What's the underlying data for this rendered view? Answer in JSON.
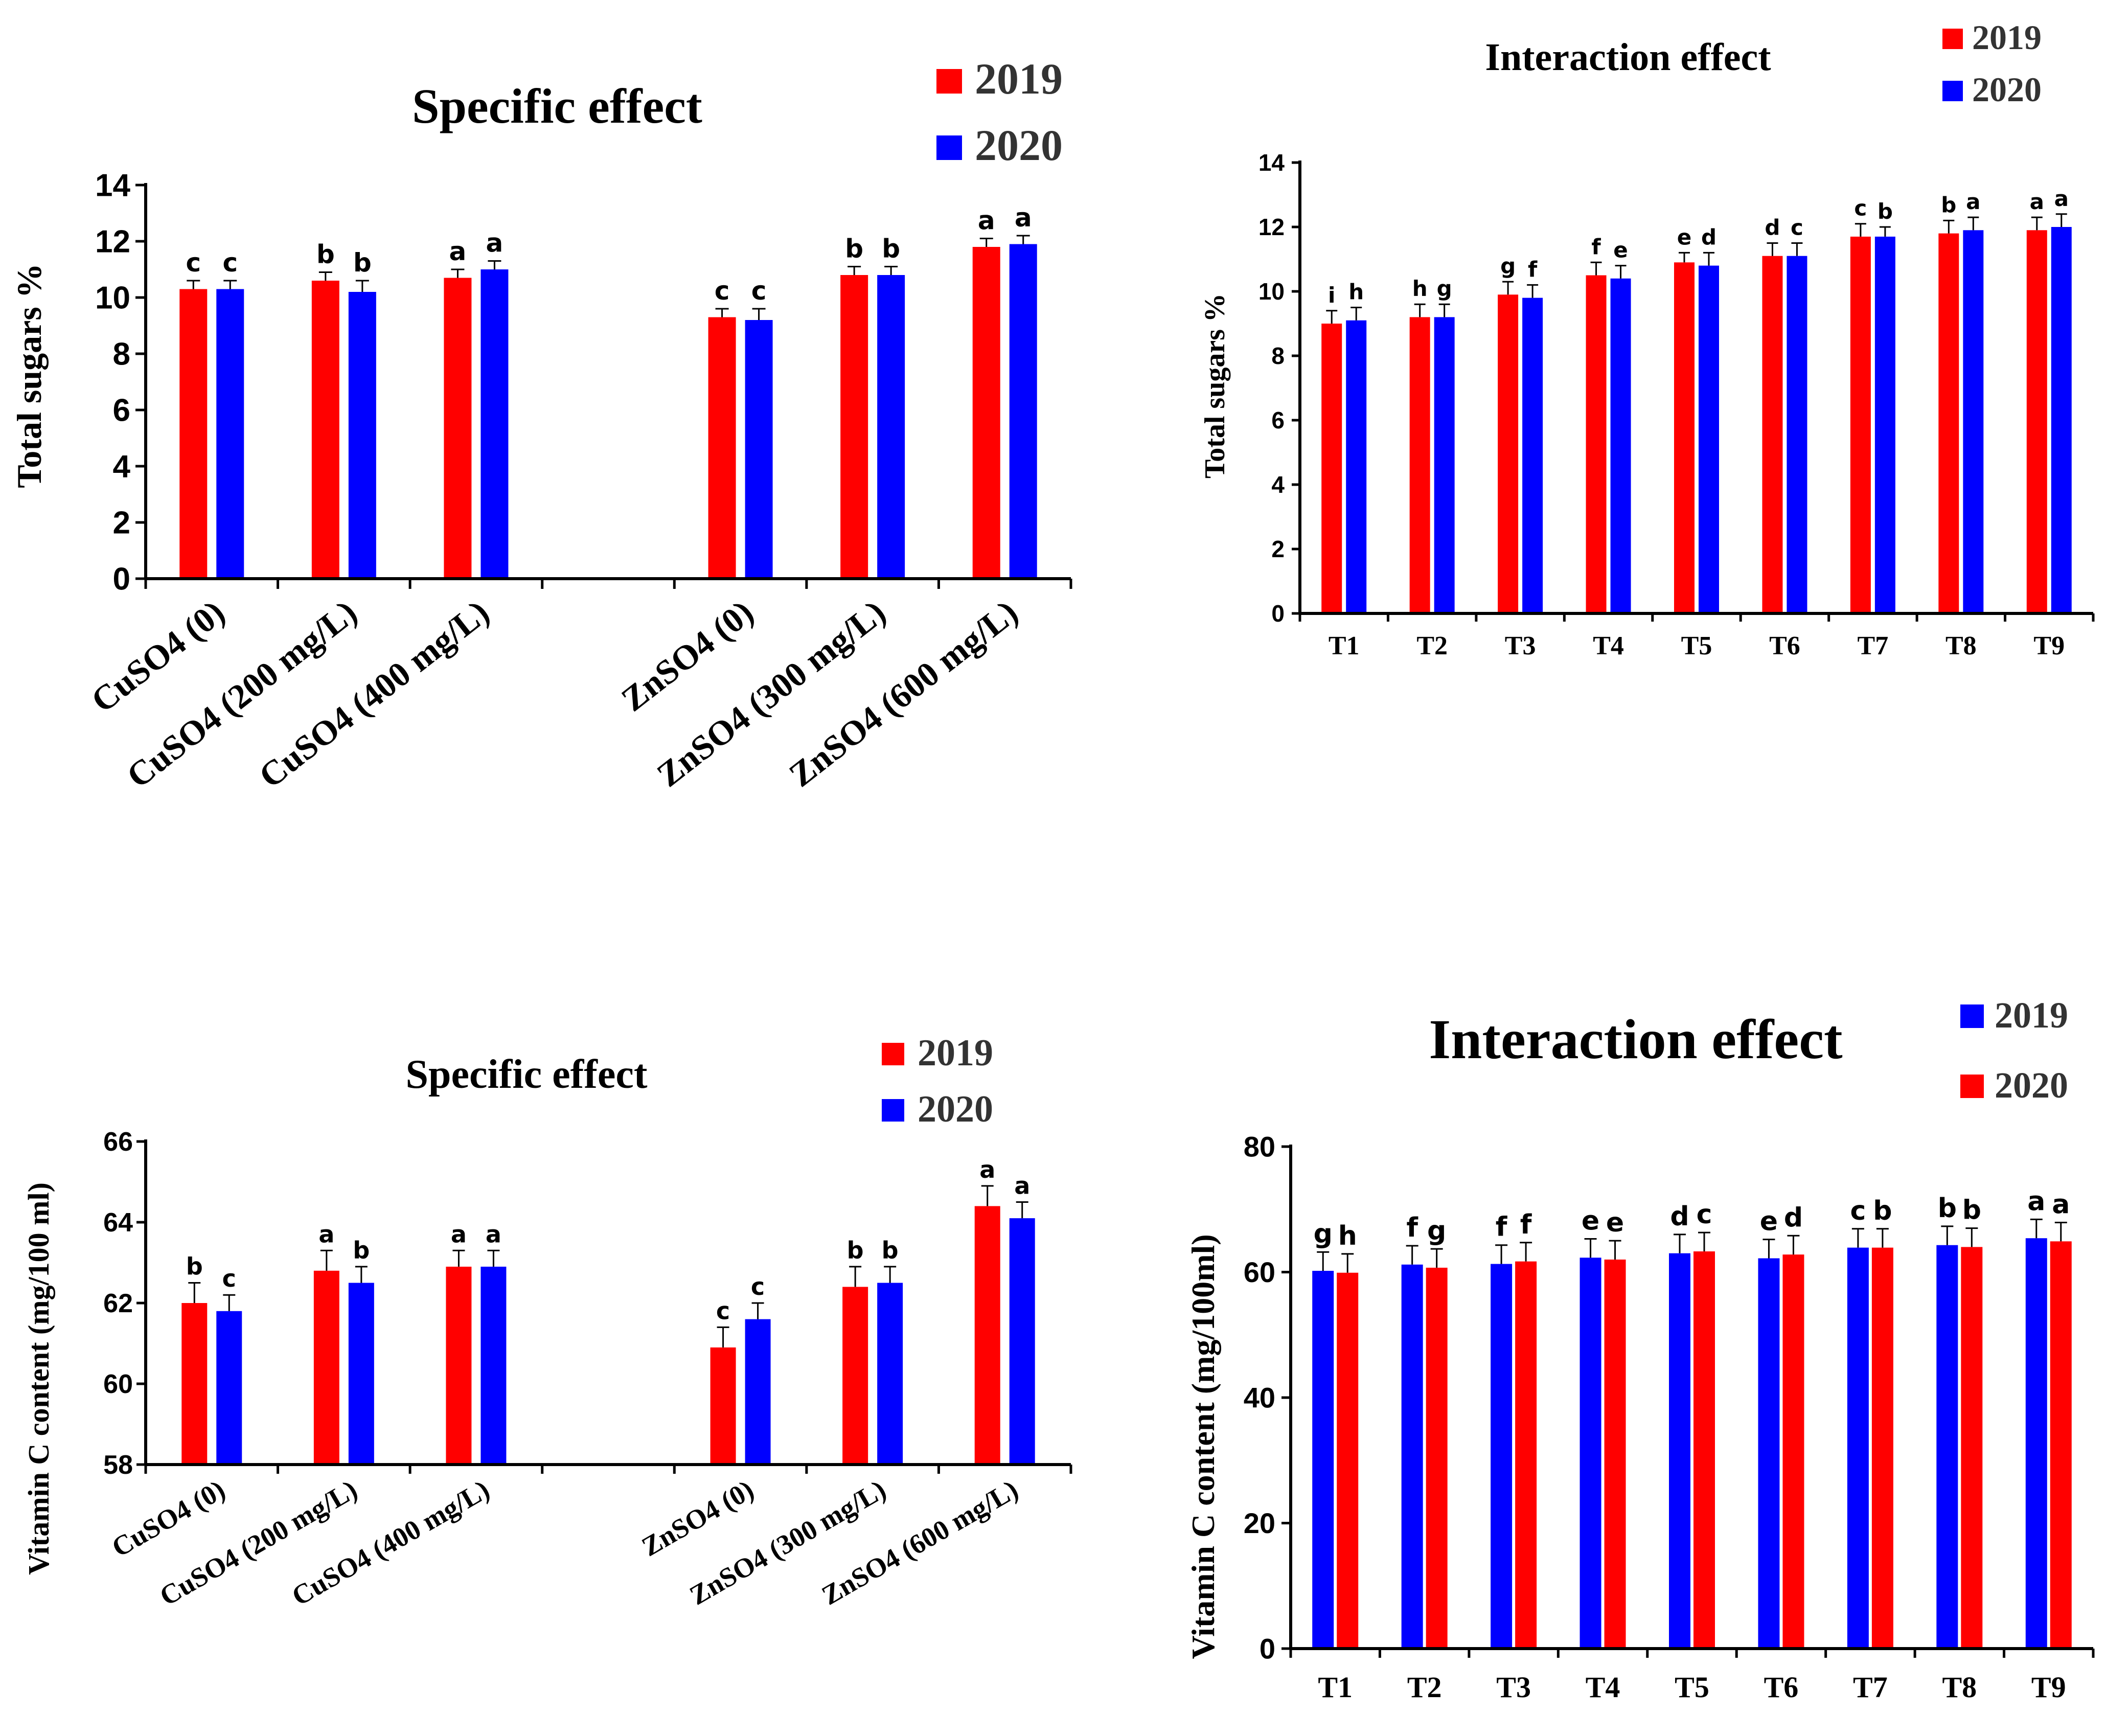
{
  "chart_data": [
    {
      "type": "bar",
      "title": "Specific effect",
      "xlabel": "",
      "ylabel": "Total sugars %",
      "ylim": [
        0,
        14
      ],
      "yticks": [
        0,
        2,
        4,
        6,
        8,
        10,
        12,
        14
      ],
      "categories": [
        "CuSO4 (0)",
        "CuSO4 (200 mg/L)",
        "CuSO4 (400 mg/L)",
        "ZnSO4 (0)",
        "ZnSO4 (300 mg/L)",
        "ZnSO4 (600 mg/L)"
      ],
      "series": [
        {
          "name": "2019",
          "color": "#ff0000",
          "values": [
            10.3,
            10.6,
            10.7,
            9.3,
            10.8,
            11.8
          ],
          "errors": [
            0.3,
            0.3,
            0.3,
            0.3,
            0.3,
            0.3
          ],
          "letters": [
            "c",
            "b",
            "a",
            "c",
            "b",
            "a"
          ]
        },
        {
          "name": "2020",
          "color": "#0000ff",
          "values": [
            10.3,
            10.2,
            11.0,
            9.2,
            10.8,
            11.9
          ],
          "errors": [
            0.3,
            0.4,
            0.3,
            0.4,
            0.3,
            0.3
          ],
          "letters": [
            "c",
            "b",
            "a",
            "c",
            "b",
            "a"
          ]
        }
      ],
      "legend_position": "top-right"
    },
    {
      "type": "bar",
      "title": "Interaction effect",
      "xlabel": "",
      "ylabel": "Total sugars %",
      "ylim": [
        0,
        14
      ],
      "yticks": [
        0,
        2,
        4,
        6,
        8,
        10,
        12,
        14
      ],
      "categories": [
        "T1",
        "T2",
        "T3",
        "T4",
        "T5",
        "T6",
        "T7",
        "T8",
        "T9"
      ],
      "series": [
        {
          "name": "2019",
          "color": "#ff0000",
          "values": [
            9.0,
            9.2,
            9.9,
            10.5,
            10.9,
            11.1,
            11.7,
            11.8,
            11.9
          ],
          "errors": [
            0.4,
            0.4,
            0.4,
            0.4,
            0.3,
            0.4,
            0.4,
            0.4,
            0.4
          ],
          "letters": [
            "i",
            "h",
            "g",
            "f",
            "e",
            "d",
            "c",
            "b",
            "a"
          ]
        },
        {
          "name": "2020",
          "color": "#0000ff",
          "values": [
            9.1,
            9.2,
            9.8,
            10.4,
            10.8,
            11.1,
            11.7,
            11.9,
            12.0
          ],
          "errors": [
            0.4,
            0.4,
            0.4,
            0.4,
            0.4,
            0.4,
            0.3,
            0.4,
            0.4
          ],
          "letters": [
            "h",
            "g",
            "f",
            "e",
            "d",
            "c",
            "b",
            "a",
            "a"
          ]
        }
      ],
      "legend_position": "top-right"
    },
    {
      "type": "bar",
      "title": "Specific effect",
      "xlabel": "",
      "ylabel": "Vitamin C content (mg/100 ml)",
      "ylim": [
        58,
        66
      ],
      "yticks": [
        58,
        60,
        62,
        64,
        66
      ],
      "categories": [
        "CuSO4 (0)",
        "CuSO4 (200 mg/L)",
        "CuSO4 (400 mg/L)",
        "ZnSO4 (0)",
        "ZnSO4 (300 mg/L)",
        "ZnSO4 (600 mg/L)"
      ],
      "series": [
        {
          "name": "2019",
          "color": "#ff0000",
          "values": [
            62.0,
            62.8,
            62.9,
            60.9,
            62.4,
            64.4
          ],
          "errors": [
            0.5,
            0.5,
            0.4,
            0.5,
            0.5,
            0.5
          ],
          "letters": [
            "b",
            "a",
            "a",
            "c",
            "b",
            "a"
          ]
        },
        {
          "name": "2020",
          "color": "#0000ff",
          "values": [
            61.8,
            62.5,
            62.9,
            61.6,
            62.5,
            64.1
          ],
          "errors": [
            0.4,
            0.4,
            0.4,
            0.4,
            0.4,
            0.4
          ],
          "letters": [
            "c",
            "b",
            "a",
            "c",
            "b",
            "a"
          ]
        }
      ],
      "legend_position": "top-right"
    },
    {
      "type": "bar",
      "title": "Interaction effect",
      "xlabel": "",
      "ylabel": "Vitamin C content (mg/100ml)",
      "ylim": [
        0,
        80
      ],
      "yticks": [
        0,
        20,
        40,
        60,
        80
      ],
      "categories": [
        "T1",
        "T2",
        "T3",
        "T4",
        "T5",
        "T6",
        "T7",
        "T8",
        "T9"
      ],
      "series": [
        {
          "name": "2019",
          "color": "#0000ff",
          "values": [
            60.2,
            61.2,
            61.3,
            62.3,
            63.0,
            62.2,
            63.9,
            64.3,
            65.4
          ],
          "errors": [
            3.0,
            3.0,
            3.0,
            3.0,
            3.0,
            3.0,
            3.0,
            3.0,
            3.0
          ],
          "letters": [
            "g",
            "f",
            "f",
            "e",
            "d",
            "e",
            "c",
            "b",
            "a"
          ]
        },
        {
          "name": "2020",
          "color": "#ff0000",
          "values": [
            59.9,
            60.7,
            61.7,
            62.0,
            63.3,
            62.8,
            63.9,
            64.0,
            64.9
          ],
          "errors": [
            3.0,
            3.0,
            3.0,
            3.0,
            3.0,
            3.0,
            3.0,
            3.0,
            3.0
          ],
          "letters": [
            "h",
            "g",
            "f",
            "e",
            "c",
            "d",
            "b",
            "b",
            "a"
          ]
        }
      ],
      "legend_position": "top-right"
    }
  ]
}
